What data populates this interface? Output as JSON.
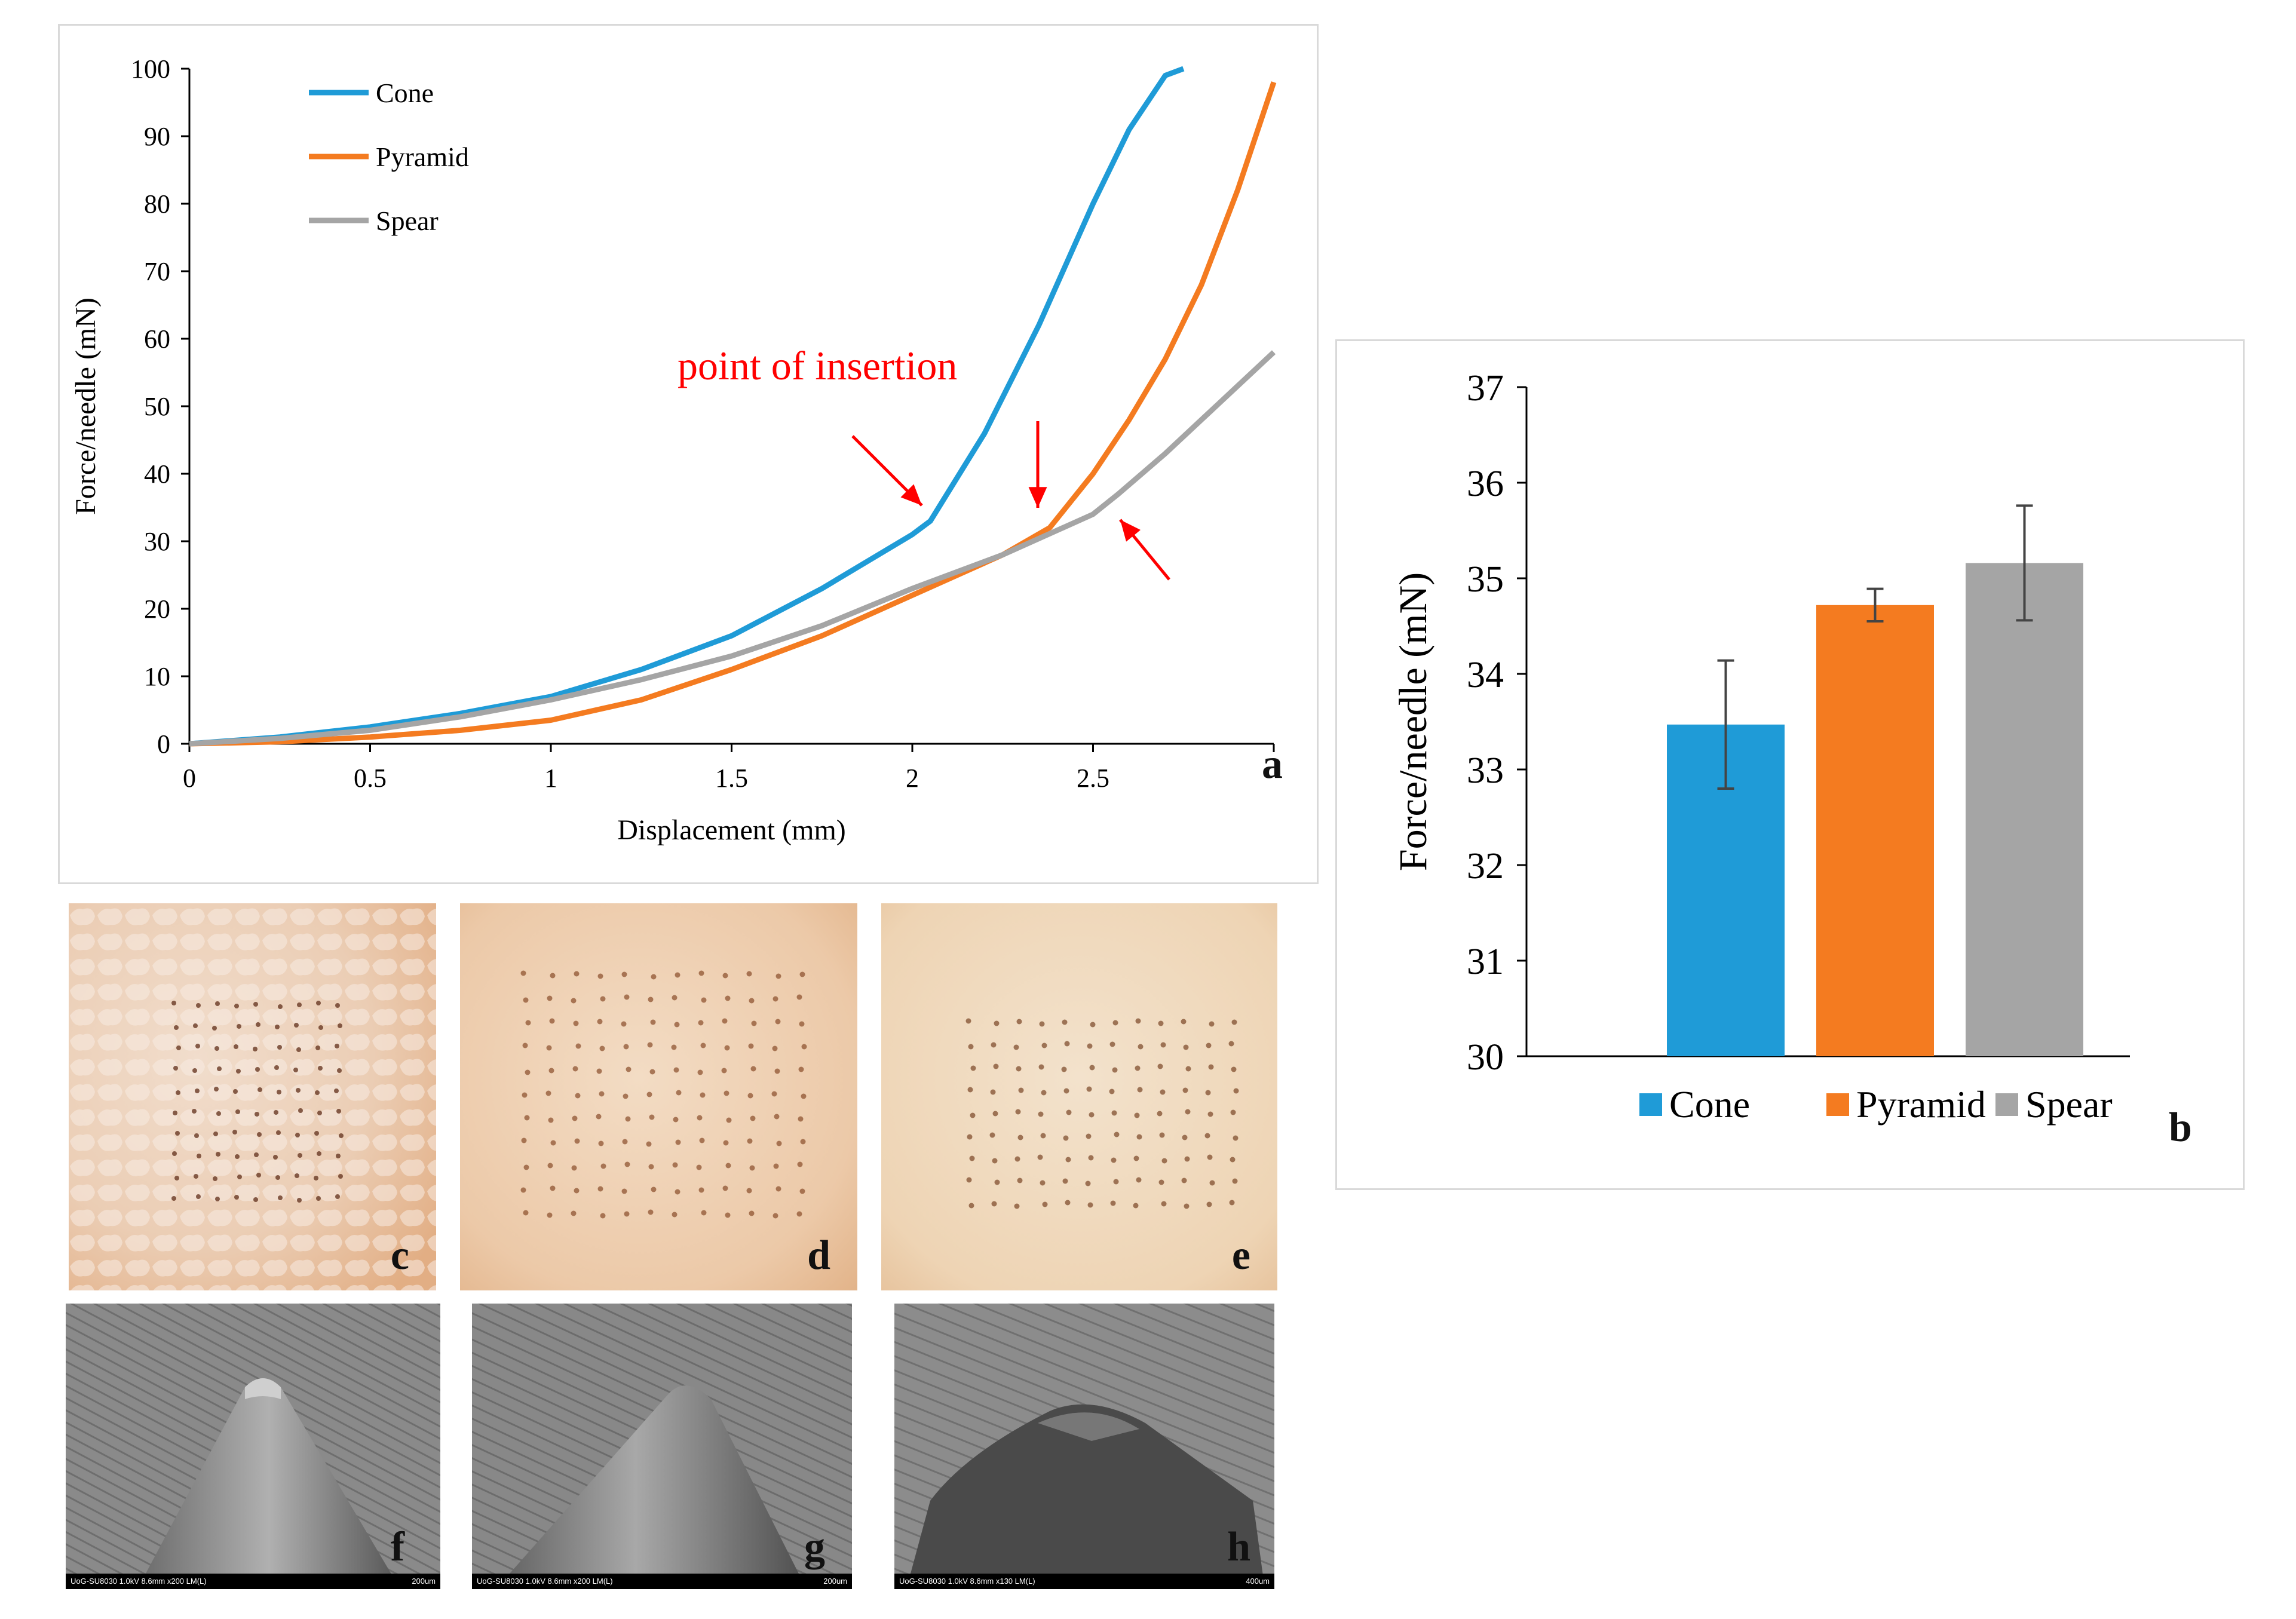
{
  "chart_data": [
    {
      "type": "line",
      "panel_label": "a",
      "title": "",
      "xlabel": "Displacement (mm)",
      "ylabel": "Force/needle (mN)",
      "xlim": [
        0,
        3
      ],
      "ylim": [
        0,
        100
      ],
      "xticks": [
        0,
        0.5,
        1,
        1.5,
        2,
        2.5,
        3
      ],
      "xtick_labels": [
        "0",
        "0.5",
        "1",
        "1.5",
        "2",
        "2.5",
        ""
      ],
      "yticks": [
        0,
        10,
        20,
        30,
        40,
        50,
        60,
        70,
        80,
        90,
        100
      ],
      "legend_position": "top-left",
      "annotation": "point of insertion",
      "series": [
        {
          "name": "Cone",
          "color": "#1f9bd7",
          "x": [
            0,
            0.25,
            0.5,
            0.75,
            1.0,
            1.25,
            1.5,
            1.75,
            2.0,
            2.05,
            2.2,
            2.35,
            2.5,
            2.6,
            2.7,
            2.75
          ],
          "y": [
            0,
            1,
            2.5,
            4.5,
            7,
            11,
            16,
            23,
            31,
            33,
            46,
            62,
            80,
            91,
            99,
            100
          ]
        },
        {
          "name": "Pyramid",
          "color": "#f47b20",
          "x": [
            0,
            0.25,
            0.5,
            0.75,
            1.0,
            1.25,
            1.5,
            1.75,
            2.0,
            2.25,
            2.38,
            2.5,
            2.6,
            2.7,
            2.8,
            2.9,
            3.0
          ],
          "y": [
            0,
            0.3,
            1,
            2,
            3.5,
            6.5,
            11,
            16,
            22,
            28,
            32,
            40,
            48,
            57,
            68,
            82,
            98
          ]
        },
        {
          "name": "Spear",
          "color": "#a5a5a5",
          "x": [
            0,
            0.25,
            0.5,
            0.75,
            1.0,
            1.25,
            1.5,
            1.75,
            2.0,
            2.25,
            2.5,
            2.57,
            2.7,
            2.8,
            2.9,
            3.0
          ],
          "y": [
            0,
            0.8,
            2,
            4,
            6.5,
            9.5,
            13,
            17.5,
            23,
            28,
            34,
            37,
            43,
            48,
            53,
            58
          ]
        }
      ]
    },
    {
      "type": "bar",
      "panel_label": "b",
      "title": "",
      "xlabel": "",
      "ylabel": "Force/needle (mN)",
      "ylim": [
        30,
        37
      ],
      "yticks": [
        30,
        31,
        32,
        33,
        34,
        35,
        36,
        37
      ],
      "legend_position": "bottom",
      "categories": [
        "Cone",
        "Pyramid",
        "Spear"
      ],
      "values": [
        33.47,
        34.72,
        35.16
      ],
      "errors": [
        0.67,
        0.17,
        0.6
      ],
      "colors": [
        "#1f9bd7",
        "#f47b20",
        "#a5a5a5"
      ]
    }
  ],
  "images": {
    "photos": [
      {
        "label": "c"
      },
      {
        "label": "d"
      },
      {
        "label": "e"
      }
    ],
    "sem": [
      {
        "label": "f",
        "info": "UoG-SU8030 1.0kV 8.6mm x200 LM(L)",
        "scale": "200um"
      },
      {
        "label": "g",
        "info": "UoG-SU8030 1.0kV 8.6mm x200 LM(L)",
        "scale": "200um"
      },
      {
        "label": "h",
        "info": "UoG-SU8030 1.0kV 8.6mm x130 LM(L)",
        "scale": "400um"
      }
    ]
  }
}
